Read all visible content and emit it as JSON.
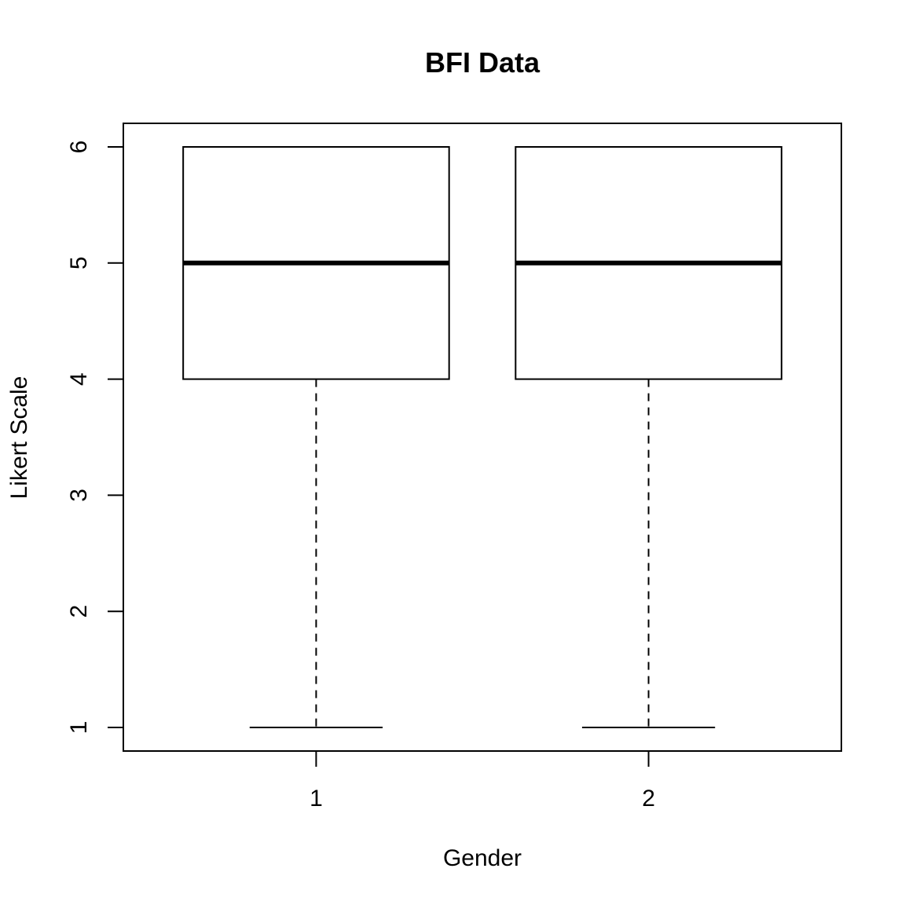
{
  "chart_data": {
    "type": "boxplot",
    "title": "BFI Data",
    "xlabel": "Gender",
    "ylabel": "Likert Scale",
    "categories": [
      "1",
      "2"
    ],
    "boxes": [
      {
        "category": "1",
        "min": 1,
        "q1": 4,
        "median": 5,
        "q3": 6,
        "max": 6
      },
      {
        "category": "2",
        "min": 1,
        "q1": 4,
        "median": 5,
        "q3": 6,
        "max": 6
      }
    ],
    "ylim": [
      1,
      6
    ],
    "yticks": [
      "1",
      "2",
      "3",
      "4",
      "5",
      "6"
    ],
    "grid": false,
    "colors": {
      "box_fill": "#ffffff",
      "stroke": "#000000"
    }
  }
}
